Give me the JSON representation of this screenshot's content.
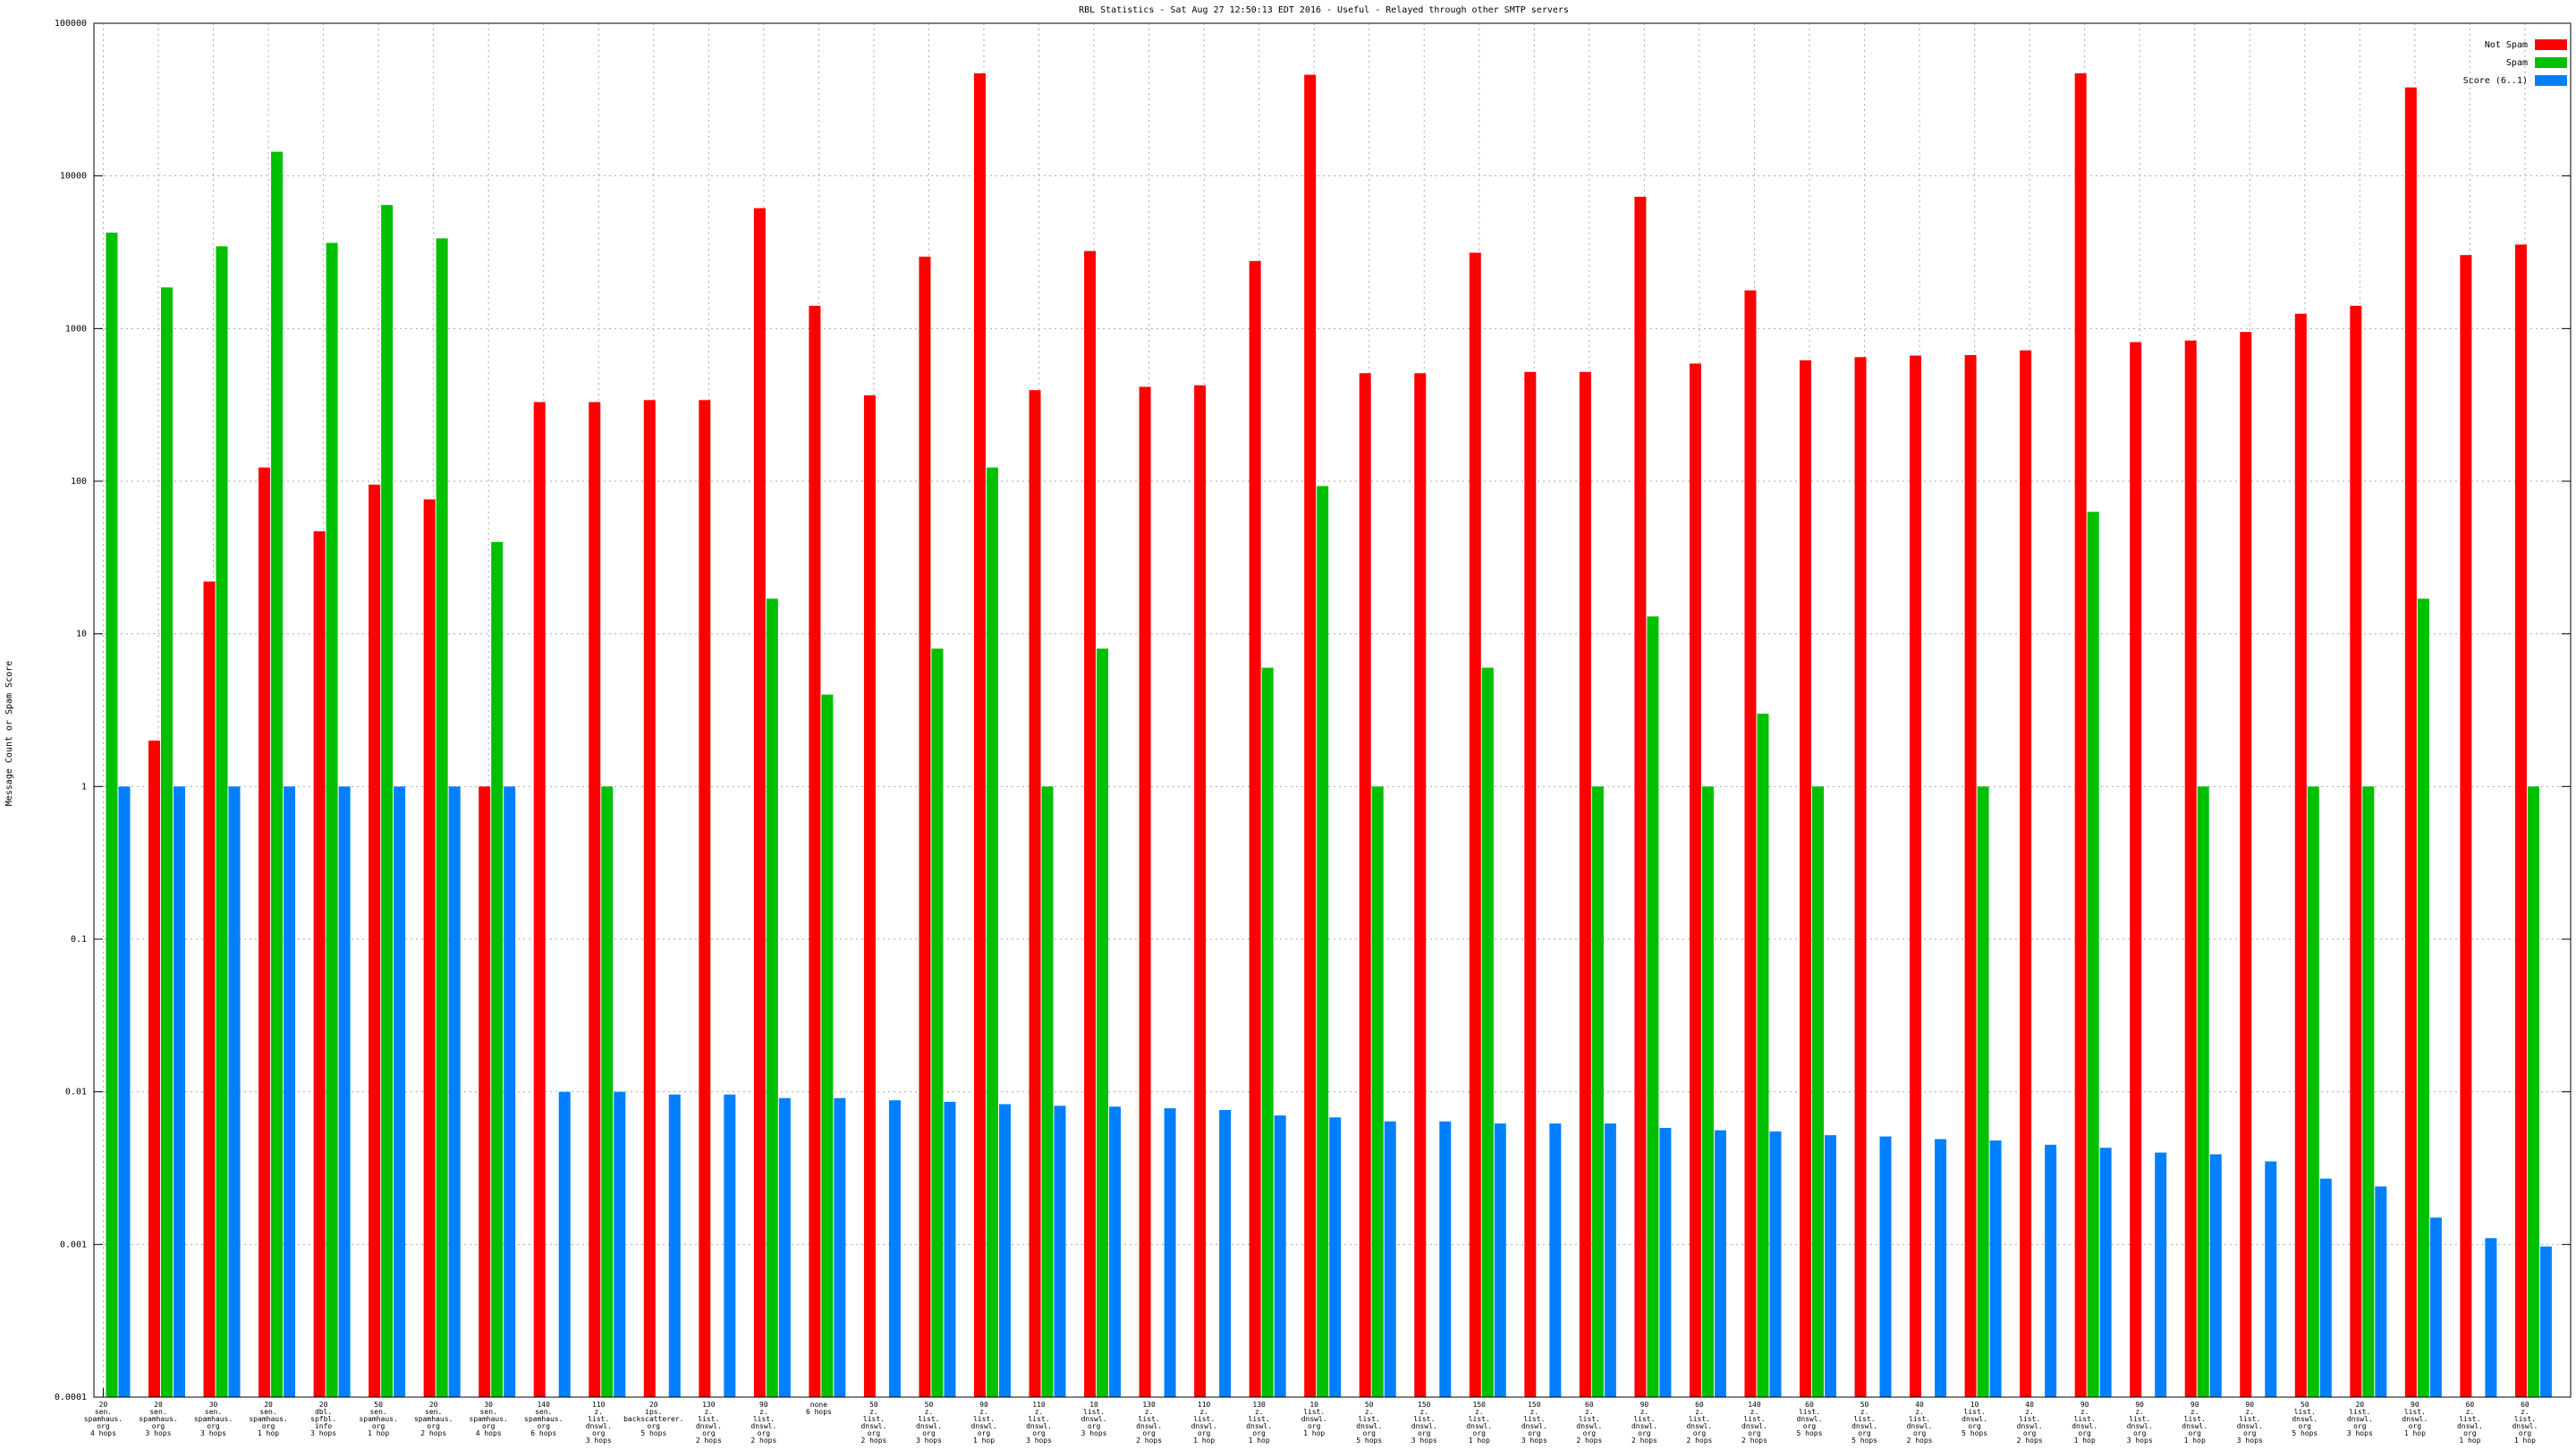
{
  "chart_data": {
    "type": "bar",
    "title": "RBL Statistics - Sat Aug 27 12:50:13 EDT 2016 - Useful - Relayed through other SMTP servers",
    "y_label": "Message Count or Spam Score",
    "log_scale": true,
    "grid": true,
    "legend": "upper right",
    "ylim": [
      0.0001,
      100000
    ],
    "yticks": [
      0.0001,
      0.001,
      0.01,
      0.1,
      1,
      10,
      100,
      1000,
      10000,
      100000
    ],
    "categories": [
      "20\nsen.\nspamhaus.\norg\n4 hops",
      "20\nsen.\nspamhaus.\norg\n3 hops",
      "30\nsen.\nspamhaus.\norg\n3 hops",
      "20\nsen.\nspamhaus.\norg\n1 hop",
      "20\ndbl.\nspfbl.\ninfo\n3 hops",
      "50\nsen.\nspamhaus.\norg\n1 hop",
      "20\nsen.\nspamhaus.\norg\n2 hops",
      "30\nsen.\nspamhaus.\norg\n4 hops",
      "140\nsen.\nspamhaus.\norg\n6 hops",
      "110\nz.\nlist.\ndnswl.\norg\n3 hops",
      "20\nips.\nbackscatterer.\norg\n5 hops",
      "130\nz.\nlist.\ndnswl.\norg\n2 hops",
      "90\nz.\nlist.\ndnswl.\norg\n2 hops",
      "none\n6 hops",
      "50\nz.\nlist.\ndnswl.\norg\n2 hops",
      "50\nz.\nlist.\ndnswl.\norg\n3 hops",
      "90\nz.\nlist.\ndnswl.\norg\n1 hop",
      "110\nz.\nlist.\ndnswl.\norg\n3 hops",
      "10\nlist.\ndnswl.\norg\n3 hops",
      "130\nz.\nlist.\ndnswl.\norg\n2 hops",
      "110\nz.\nlist.\ndnswl.\norg\n1 hop",
      "130\nz.\nlist.\ndnswl.\norg\n1 hop",
      "10\nlist.\ndnswl.\norg\n1 hop",
      "50\nz.\nlist.\ndnswl.\norg\n5 hops",
      "150\nz.\nlist.\ndnswl.\norg\n3 hops",
      "150\nz.\nlist.\ndnswl.\norg\n1 hop",
      "150\nz.\nlist.\ndnswl.\norg\n3 hops",
      "60\nz.\nlist.\ndnswl.\norg\n2 hops",
      "90\nz.\nlist.\ndnswl.\norg\n2 hops",
      "60\nz.\nlist.\ndnswl.\norg\n2 hops",
      "140\nz.\nlist.\ndnswl.\norg\n2 hops",
      "60\nlist.\ndnswl.\norg\n5 hops",
      "50\nz.\nlist.\ndnswl.\norg\n5 hops",
      "40\nz.\nlist.\ndnswl.\norg\n2 hops",
      "10\nlist.\ndnswl.\norg\n5 hops",
      "40\nz.\nlist.\ndnswl.\norg\n2 hops",
      "90\nz.\nlist.\ndnswl.\norg\n1 hop",
      "90\nz.\nlist.\ndnswl.\norg\n3 hops",
      "90\nz.\nlist.\ndnswl.\norg\n1 hop",
      "90\nz.\nlist.\ndnswl.\norg\n3 hops",
      "50\nlist.\ndnswl.\norg\n5 hops",
      "20\nlist.\ndnswl.\norg\n3 hops",
      "90\nlist.\ndnswl.\norg\n1 hop",
      "60\nz.\nlist.\ndnswl.\norg\n1 hop",
      "60\nz.\nlist.\ndnswl.\norg\n1 hop"
    ],
    "series": [
      {
        "name": "Not Spam",
        "color": "#ff0000",
        "values": [
          null,
          2,
          22,
          123,
          47,
          95,
          76,
          1,
          330,
          330,
          340,
          340,
          6150,
          1410,
          365,
          2960,
          47000,
          395,
          3220,
          415,
          425,
          2770,
          46000,
          510,
          510,
          3140,
          520,
          520,
          7300,
          590,
          1780,
          620,
          650,
          665,
          670,
          720,
          47000,
          815,
          835,
          950,
          1250,
          1410,
          38000,
          3030,
          3550
        ]
      },
      {
        "name": "Spam",
        "color": "#00c000",
        "values": [
          4250,
          1860,
          3460,
          14400,
          3640,
          6450,
          3900,
          40,
          null,
          1,
          null,
          null,
          17,
          4,
          null,
          8,
          123,
          1,
          8,
          null,
          null,
          6,
          93,
          1,
          null,
          6,
          null,
          1,
          13,
          1,
          3,
          1,
          null,
          null,
          1,
          null,
          63,
          null,
          1,
          null,
          1,
          1,
          17,
          null,
          1
        ]
      },
      {
        "name": "Score (6..1)",
        "color": "#0080ff",
        "values": [
          1,
          1,
          1,
          1,
          1,
          1,
          1,
          1,
          0.01,
          0.01,
          0.0096,
          0.0096,
          0.0091,
          0.0091,
          0.0088,
          0.0086,
          0.0083,
          0.0081,
          0.008,
          0.0078,
          0.0076,
          0.007,
          0.0068,
          0.0064,
          0.0064,
          0.0062,
          0.0062,
          0.0062,
          0.0058,
          0.0056,
          0.0055,
          0.0052,
          0.0051,
          0.0049,
          0.0048,
          0.0045,
          0.0043,
          0.004,
          0.0039,
          0.0035,
          0.0027,
          0.0024,
          0.0015,
          0.0011,
          0.00097
        ]
      }
    ]
  }
}
